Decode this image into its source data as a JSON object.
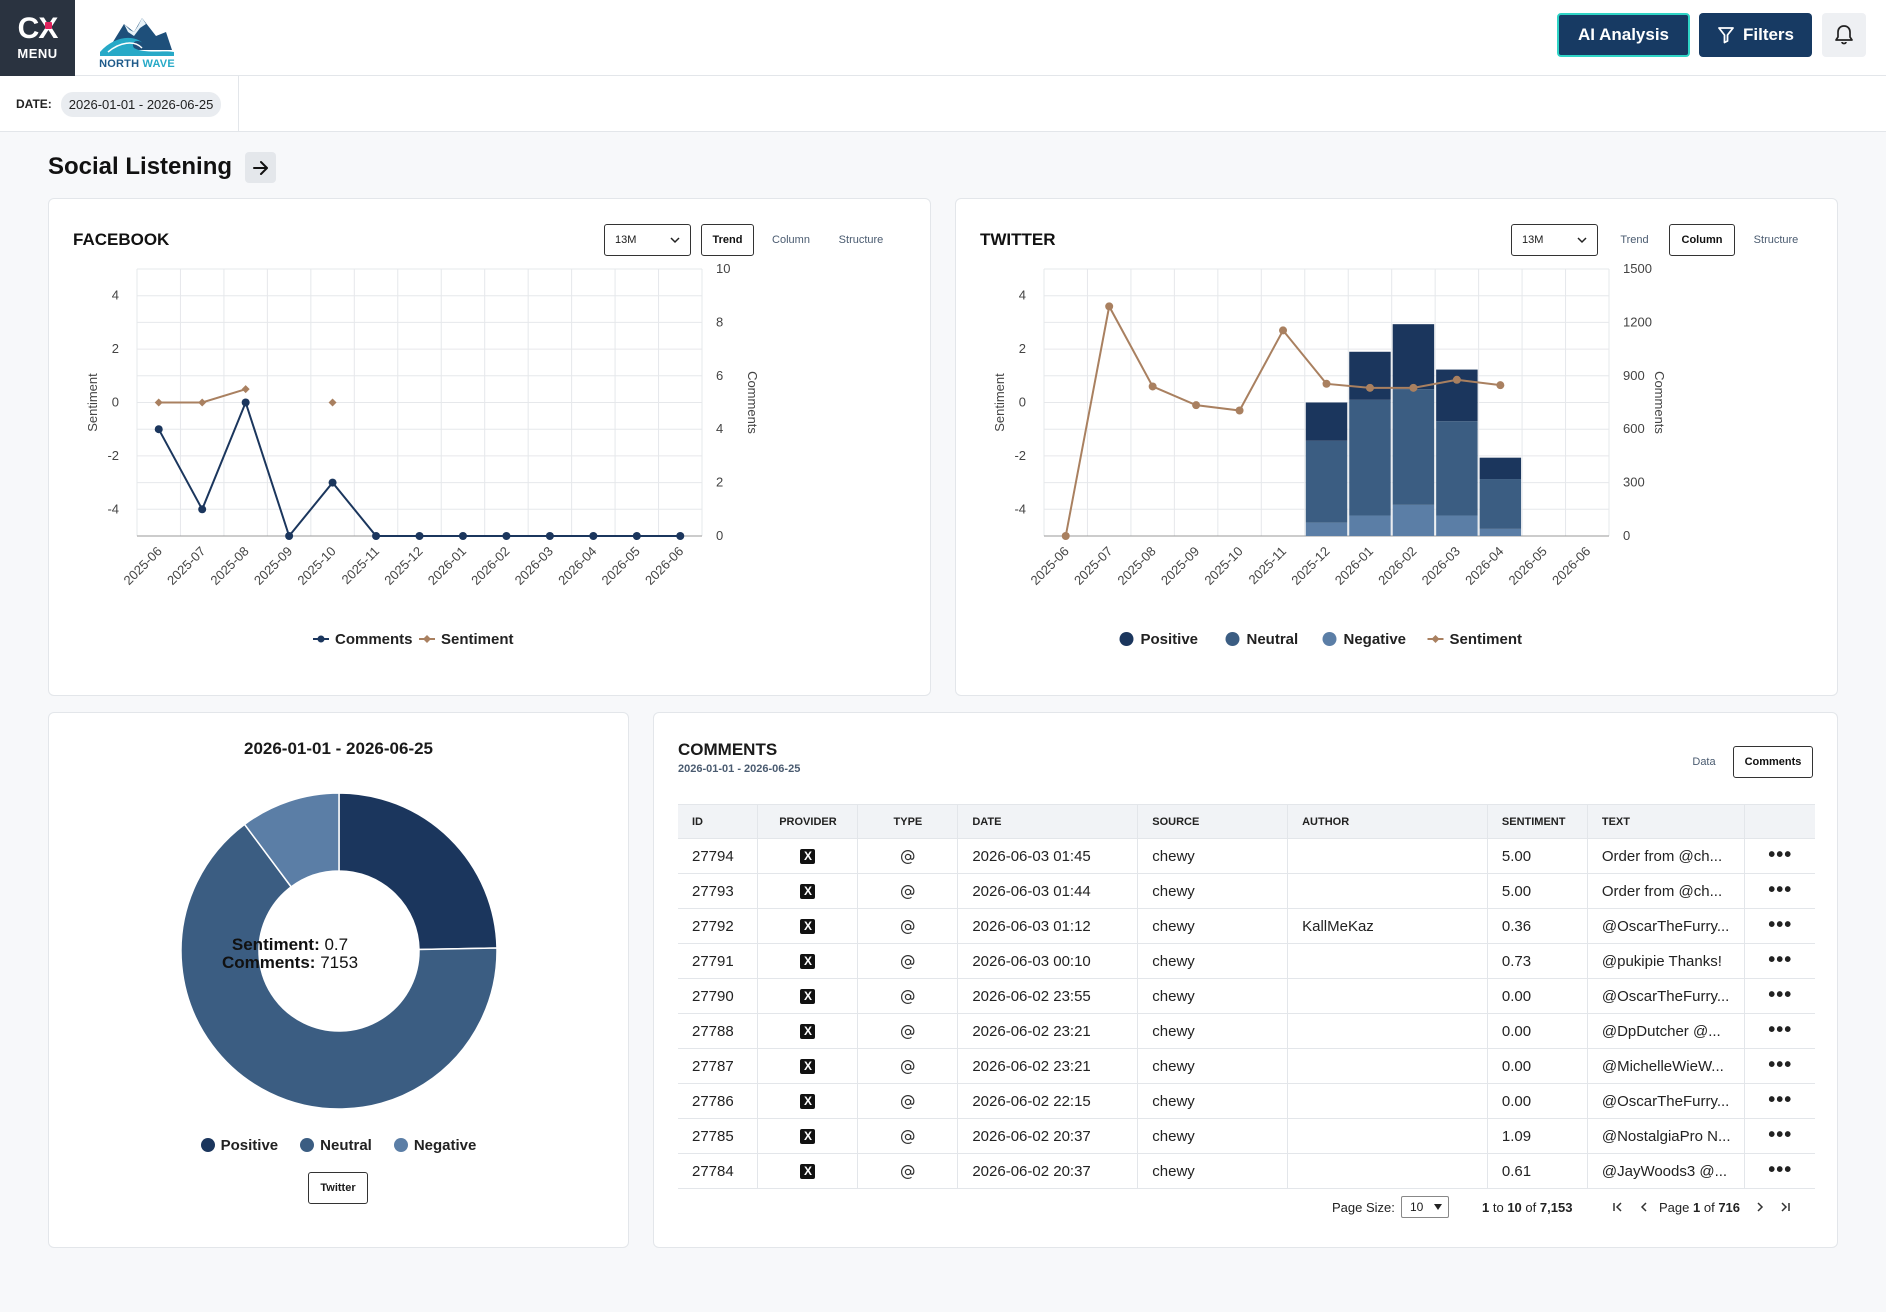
{
  "header": {
    "menu_label": "MENU",
    "logo_text": "CX",
    "brand_name_1": "NORTH",
    "brand_name_2": "WAVE",
    "ai_button": "AI Analysis",
    "filters_button": "Filters"
  },
  "date_filter": {
    "label": "DATE:",
    "value": "2026-01-01 - 2026-06-25"
  },
  "page_title": "Social Listening",
  "facebook": {
    "title": "FACEBOOK",
    "period": "13M",
    "views": [
      "Trend",
      "Column",
      "Structure"
    ],
    "active_view": "Trend",
    "legend": [
      "Comments",
      "Sentiment"
    ]
  },
  "twitter": {
    "title": "TWITTER",
    "period": "13M",
    "views": [
      "Trend",
      "Column",
      "Structure"
    ],
    "active_view": "Column",
    "legend": [
      "Positive",
      "Neutral",
      "Negative",
      "Sentiment"
    ]
  },
  "donut": {
    "title": "2026-01-01 - 2026-06-25",
    "center_sentiment_label": "Sentiment:",
    "center_sentiment_value": "0.7",
    "center_comments_label": "Comments:",
    "center_comments_value": "7153",
    "legend": [
      "Positive",
      "Neutral",
      "Negative"
    ],
    "provider_button": "Twitter"
  },
  "comments": {
    "title": "COMMENTS",
    "subtitle": "2026-01-01 - 2026-06-25",
    "tabs": [
      "Data",
      "Comments"
    ],
    "active_tab": "Comments",
    "columns": [
      "ID",
      "PROVIDER",
      "TYPE",
      "DATE",
      "SOURCE",
      "AUTHOR",
      "SENTIMENT",
      "TEXT"
    ],
    "rows": [
      {
        "id": "27794",
        "date": "2026-06-03 01:45",
        "source": "chewy",
        "author": "",
        "sentiment": "5.00",
        "text": "Order from @ch..."
      },
      {
        "id": "27793",
        "date": "2026-06-03 01:44",
        "source": "chewy",
        "author": "",
        "sentiment": "5.00",
        "text": "Order from @ch..."
      },
      {
        "id": "27792",
        "date": "2026-06-03 01:12",
        "source": "chewy",
        "author": "KallMeKaz",
        "sentiment": "0.36",
        "text": "@OscarTheFurry..."
      },
      {
        "id": "27791",
        "date": "2026-06-03 00:10",
        "source": "chewy",
        "author": "",
        "sentiment": "0.73",
        "text": "@pukipie Thanks!"
      },
      {
        "id": "27790",
        "date": "2026-06-02 23:55",
        "source": "chewy",
        "author": "",
        "sentiment": "0.00",
        "text": "@OscarTheFurry..."
      },
      {
        "id": "27788",
        "date": "2026-06-02 23:21",
        "source": "chewy",
        "author": "",
        "sentiment": "0.00",
        "text": "@DpDutcher @..."
      },
      {
        "id": "27787",
        "date": "2026-06-02 23:21",
        "source": "chewy",
        "author": "",
        "sentiment": "0.00",
        "text": "@MichelleWieW..."
      },
      {
        "id": "27786",
        "date": "2026-06-02 22:15",
        "source": "chewy",
        "author": "",
        "sentiment": "0.00",
        "text": "@OscarTheFurry..."
      },
      {
        "id": "27785",
        "date": "2026-06-02 20:37",
        "source": "chewy",
        "author": "",
        "sentiment": "1.09",
        "text": "@NostalgiaPro N..."
      },
      {
        "id": "27784",
        "date": "2026-06-02 20:37",
        "source": "chewy",
        "author": "",
        "sentiment": "0.61",
        "text": "@JayWoods3 @..."
      }
    ],
    "provider_icon": "x-logo-icon",
    "type_icon": "at-icon",
    "pagination": {
      "page_size_label": "Page Size:",
      "page_size": "10",
      "range_from": "1",
      "range_to_label": "to",
      "range_to": "10",
      "of_label": "of",
      "total": "7,153",
      "page_label": "Page",
      "page": "1",
      "page_of_label": "of",
      "pages": "716"
    }
  },
  "colors": {
    "navy": "#1b365d",
    "neutral": "#3b5d82",
    "negative": "#5b7ea6",
    "sentiment": "#a98060",
    "accent_border": "#2fd4c6"
  },
  "chart_data": [
    {
      "type": "line",
      "name": "FACEBOOK",
      "categories": [
        "2025-06",
        "2025-07",
        "2025-08",
        "2025-09",
        "2025-10",
        "2025-11",
        "2025-12",
        "2026-01",
        "2026-02",
        "2026-03",
        "2026-04",
        "2026-05",
        "2026-06"
      ],
      "series": [
        {
          "name": "Comments",
          "axis": "right",
          "values": [
            4,
            1,
            5,
            0,
            2,
            0,
            0,
            0,
            0,
            0,
            0,
            0,
            0
          ]
        },
        {
          "name": "Sentiment",
          "axis": "left",
          "values": [
            0,
            0,
            0.5,
            null,
            0,
            null,
            null,
            null,
            null,
            null,
            null,
            null,
            null
          ]
        }
      ],
      "ylabel": "Sentiment",
      "y2label": "Comments",
      "ylim": [
        -5,
        5
      ],
      "y2lim": [
        0,
        10
      ],
      "yticks": [
        -4,
        -2,
        0,
        2,
        4
      ],
      "y2ticks": [
        0,
        2,
        4,
        6,
        8,
        10
      ],
      "grid": true,
      "legend": "bottom"
    },
    {
      "type": "bar",
      "name": "TWITTER",
      "stacked": true,
      "categories": [
        "2025-06",
        "2025-07",
        "2025-08",
        "2025-09",
        "2025-10",
        "2025-11",
        "2025-12",
        "2026-01",
        "2026-02",
        "2026-03",
        "2026-04",
        "2026-05",
        "2026-06"
      ],
      "series": [
        {
          "name": "Negative",
          "axis": "right",
          "values": [
            0,
            0,
            0,
            0,
            0,
            0,
            75,
            115,
            175,
            115,
            40,
            0,
            0
          ]
        },
        {
          "name": "Neutral",
          "axis": "right",
          "values": [
            0,
            0,
            0,
            0,
            0,
            0,
            460,
            650,
            650,
            530,
            280,
            0,
            0
          ]
        },
        {
          "name": "Positive",
          "axis": "right",
          "values": [
            0,
            0,
            0,
            0,
            0,
            0,
            215,
            270,
            365,
            290,
            120,
            0,
            0
          ]
        },
        {
          "name": "Sentiment",
          "type": "line",
          "axis": "left",
          "values": [
            -5,
            3.6,
            0.6,
            -0.1,
            -0.3,
            2.7,
            0.7,
            0.55,
            0.55,
            0.85,
            0.65,
            null,
            null
          ]
        }
      ],
      "ylabel": "Sentiment",
      "y2label": "Comments",
      "ylim": [
        -5,
        5
      ],
      "y2lim": [
        0,
        1500
      ],
      "yticks": [
        -4,
        -2,
        0,
        2,
        4
      ],
      "y2ticks": [
        0,
        300,
        600,
        900,
        1200,
        1500
      ],
      "grid": true,
      "legend": "bottom"
    },
    {
      "type": "pie",
      "name": "2026-01-01 - 2026-06-25",
      "donut": true,
      "categories": [
        "Positive",
        "Neutral",
        "Negative"
      ],
      "values": [
        24.7,
        65.1,
        10.2
      ]
    }
  ]
}
